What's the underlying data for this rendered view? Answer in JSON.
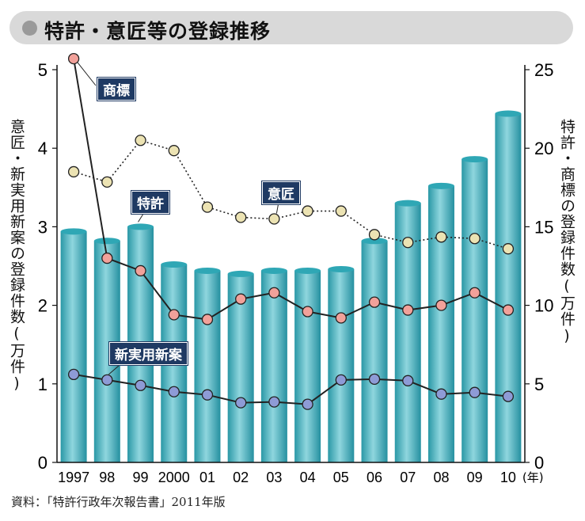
{
  "title": "特許・意匠等の登録推移",
  "source": "資料：「特許行政年次報告書」2011年版",
  "colors": {
    "bar": "#2fa7b5",
    "bar_light": "#8fd3db",
    "trademark_marker": "#f2a19a",
    "design_marker": "#ece3b3",
    "patent_marker": "#f2a19a",
    "utility_marker": "#8e9bd6"
  },
  "chart_data": {
    "type": "bar",
    "categories": [
      "1997",
      "98",
      "99",
      "2000",
      "01",
      "02",
      "03",
      "04",
      "05",
      "06",
      "07",
      "08",
      "09",
      "10"
    ],
    "x_unit_label": "(年)",
    "left_axis": {
      "label": "意匠・新実用新案の登録件数(万件)",
      "ylim": [
        0,
        5
      ],
      "ticks": [
        "0",
        "1",
        "2",
        "3",
        "4",
        "5"
      ]
    },
    "right_axis": {
      "label": "特許・商標の登録件数(万件)",
      "ylim": [
        0,
        25
      ],
      "ticks": [
        "0",
        "5",
        "10",
        "15",
        "20",
        "25"
      ]
    },
    "grid": false,
    "series": [
      {
        "name": "特許",
        "kind": "bar",
        "axis": "right",
        "values": [
          14.7,
          14.1,
          15.0,
          12.6,
          12.2,
          12.0,
          12.2,
          12.2,
          12.3,
          14.1,
          16.5,
          17.6,
          19.3,
          22.2
        ]
      },
      {
        "name": "商標",
        "kind": "line",
        "axis": "right",
        "style": "solid",
        "values": [
          25.7,
          13.0,
          12.2,
          9.4,
          9.1,
          10.4,
          10.8,
          9.6,
          9.2,
          10.2,
          9.7,
          10.0,
          10.8,
          9.7
        ]
      },
      {
        "name": "意匠",
        "kind": "line",
        "axis": "left",
        "style": "dotted",
        "values": [
          3.7,
          3.57,
          4.1,
          3.97,
          3.25,
          3.12,
          3.1,
          3.2,
          3.2,
          2.9,
          2.8,
          2.87,
          2.85,
          2.72
        ]
      },
      {
        "name": "新実用新案",
        "kind": "line",
        "axis": "left",
        "style": "solid",
        "values": [
          1.12,
          1.05,
          0.98,
          0.9,
          0.86,
          0.76,
          0.77,
          0.74,
          1.05,
          1.06,
          1.04,
          0.87,
          0.89,
          0.84
        ]
      }
    ]
  }
}
